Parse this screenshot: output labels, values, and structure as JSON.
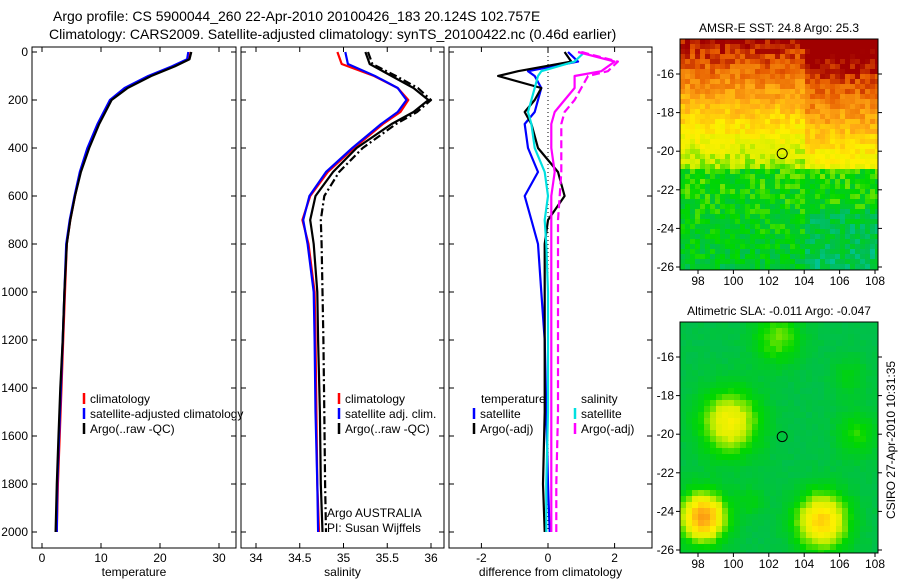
{
  "title_line1": "Argo profile: CS 5900044_260 22-Apr-2010 20100426_183 20.124S 102.757E",
  "title_line2": "Climatology: CARS2009. Satellite-adjusted climatology: synTS_20100422.nc (0.46d earlier)",
  "footer_stamp": "CSIRO 27-Apr-2010 10:31:35",
  "annotation": {
    "line1": "Argo AUSTRALIA",
    "line2": "PI: Susan Wijffels"
  },
  "colors": {
    "climatology": "#ff0000",
    "satellite": "#0000ff",
    "argo": "#000000",
    "sal_satellite": "#00e0e0",
    "sal_argo": "#ff00ff"
  },
  "chart_data": [
    {
      "type": "line",
      "xlabel": "temperature",
      "xlim": [
        -1.7,
        32.9
      ],
      "ylim": [
        0,
        2067
      ],
      "xticks": [
        "0",
        "10",
        "20",
        "30"
      ],
      "xtick_values": [
        0,
        10,
        20,
        30
      ],
      "yticks": [
        "0",
        "200",
        "400",
        "600",
        "800",
        "1000",
        "1200",
        "1400",
        "1600",
        "1800",
        "2000"
      ],
      "ytick_values": [
        0,
        200,
        400,
        600,
        800,
        1000,
        1200,
        1400,
        1600,
        1800,
        2000
      ],
      "y_reversed": true,
      "legend": [
        "climatology",
        "satellite-adjusted climatology",
        "Argo(..raw -QC)"
      ],
      "depth": [
        0,
        30,
        60,
        100,
        150,
        200,
        300,
        400,
        500,
        600,
        700,
        800,
        1000,
        1200,
        1400,
        1600,
        1800,
        2000
      ],
      "series": [
        {
          "name": "climatology",
          "values": [
            25.2,
            24.9,
            22.2,
            18.2,
            14.2,
            11.6,
            9.5,
            7.8,
            6.5,
            5.6,
            4.8,
            4.2,
            3.9,
            3.6,
            3.3,
            3.0,
            2.7,
            2.5
          ]
        },
        {
          "name": "satellite-adjusted climatology",
          "values": [
            24.8,
            24.6,
            22.0,
            18.0,
            14.0,
            11.5,
            9.4,
            7.7,
            6.4,
            5.5,
            4.7,
            4.1,
            3.8,
            3.5,
            3.2,
            2.9,
            2.6,
            2.5
          ]
        },
        {
          "name": "Argo(..raw -QC)",
          "values": [
            25.3,
            25.0,
            22.5,
            18.5,
            14.5,
            11.8,
            9.7,
            8.0,
            6.6,
            5.6,
            4.8,
            4.2,
            3.8,
            3.5,
            3.1,
            2.8,
            2.5,
            2.3
          ]
        }
      ]
    },
    {
      "type": "line",
      "xlabel": "salinity",
      "xlim": [
        33.83,
        36.15
      ],
      "ylim": [
        0,
        2067
      ],
      "xticks": [
        "34",
        "34.5",
        "35",
        "35.5",
        "36"
      ],
      "xtick_values": [
        34,
        34.5,
        35,
        35.5,
        36
      ],
      "y_reversed": true,
      "legend": [
        "climatology",
        "satellite adj. clim.",
        "Argo(..raw -QC)"
      ],
      "depth": [
        0,
        50,
        100,
        150,
        200,
        250,
        300,
        400,
        500,
        600,
        700,
        800,
        1000,
        1200,
        1500,
        1800,
        2000
      ],
      "series": [
        {
          "name": "climatology",
          "values": [
            34.93,
            34.98,
            35.35,
            35.62,
            35.74,
            35.65,
            35.45,
            35.12,
            34.82,
            34.62,
            34.53,
            34.6,
            34.67,
            34.68,
            34.69,
            34.7,
            34.72
          ]
        },
        {
          "name": "satellite adj. clim.",
          "values": [
            35.02,
            35.05,
            35.36,
            35.62,
            35.72,
            35.62,
            35.43,
            35.1,
            34.8,
            34.61,
            34.54,
            34.59,
            34.66,
            34.67,
            34.68,
            34.7,
            34.71
          ]
        },
        {
          "name": "Argo(..raw -QC)",
          "values": [
            35.25,
            35.3,
            35.55,
            35.8,
            35.97,
            35.8,
            35.55,
            35.15,
            34.88,
            34.68,
            34.62,
            34.66,
            34.7,
            34.71,
            34.73,
            34.74,
            34.76
          ]
        },
        {
          "name": "Argo adjusted",
          "values": [
            35.28,
            35.33,
            35.6,
            35.85,
            36.0,
            35.84,
            35.6,
            35.22,
            34.95,
            34.78,
            34.74,
            34.75,
            34.76,
            34.77,
            34.78,
            34.79,
            34.8
          ]
        }
      ]
    },
    {
      "type": "line",
      "xlabel": "difference from climatology",
      "xlim": [
        -2.97,
        3.12
      ],
      "ylim": [
        0,
        2067
      ],
      "xticks": [
        "-2",
        "0",
        "2"
      ],
      "xtick_values": [
        -2,
        0,
        2
      ],
      "y_reversed": true,
      "legend_temperature": {
        "title": "temperature",
        "items": [
          "satellite",
          "Argo(-adj)"
        ]
      },
      "legend_salinity": {
        "title": "salinity",
        "items": [
          "satellite",
          "Argo(-adj)"
        ]
      },
      "depth": [
        0,
        40,
        80,
        100,
        150,
        200,
        250,
        300,
        400,
        500,
        600,
        700,
        800,
        1000,
        1200,
        1500,
        1800,
        2000
      ],
      "series": [
        {
          "name": "temperature satellite",
          "values": [
            0.6,
            0.9,
            -0.6,
            -0.4,
            -0.2,
            -0.3,
            -0.4,
            -0.7,
            -0.6,
            -0.3,
            -0.7,
            -0.5,
            -0.3,
            -0.2,
            -0.1,
            -0.05,
            0,
            0.05
          ]
        },
        {
          "name": "temperature Argo(-adj)",
          "values": [
            0.5,
            0.7,
            -0.9,
            -1.5,
            -0.2,
            -0.4,
            -0.7,
            -0.5,
            -0.3,
            0.3,
            0.5,
            0.0,
            -0.1,
            -0.1,
            -0.1,
            -0.1,
            -0.15,
            -0.1
          ]
        },
        {
          "name": "salinity satellite",
          "values": [
            1.1,
            0.8,
            -0.2,
            -0.3,
            -0.4,
            -0.5,
            -0.6,
            -0.5,
            -0.4,
            -0.1,
            0.0,
            -0.1,
            -0.05,
            0,
            0,
            0,
            -0.05,
            -0.05
          ]
        },
        {
          "name": "salinity Argo(-adj)",
          "values": [
            0.9,
            2.0,
            1.6,
            0.8,
            0.8,
            0.5,
            0.2,
            0.1,
            0.1,
            0.2,
            0.1,
            0.1,
            0.1,
            0.1,
            0.1,
            0.1,
            0.1,
            0.1
          ]
        },
        {
          "name": "salinity Argo(-adj) adjusted",
          "values": [
            1.0,
            2.1,
            1.8,
            1.2,
            1.0,
            0.8,
            0.5,
            0.4,
            0.4,
            0.4,
            0.35,
            0.3,
            0.3,
            0.3,
            0.3,
            0.3,
            0.25,
            0.25
          ]
        }
      ]
    },
    {
      "type": "heatmap",
      "title": "AMSR-E SST: 24.8 Argo: 25.3",
      "xticks": [
        "98",
        "100",
        "102",
        "104",
        "106",
        "108"
      ],
      "xtick_values": [
        98,
        100,
        102,
        104,
        106,
        108
      ],
      "yticks": [
        "-16",
        "-18",
        "-20",
        "-22",
        "-24",
        "-26"
      ],
      "ytick_values": [
        -16,
        -18,
        -20,
        -22,
        -24,
        -26
      ],
      "xlim": [
        97.3,
        108.2
      ],
      "ylim": [
        -26.1,
        -14.7
      ],
      "marker": {
        "lon": 102.757,
        "lat": -20.124
      }
    },
    {
      "type": "heatmap",
      "title": "Altimetric SLA: -0.011 Argo: -0.047",
      "xticks": [
        "98",
        "100",
        "102",
        "104",
        "106",
        "108"
      ],
      "xtick_values": [
        98,
        100,
        102,
        104,
        106,
        108
      ],
      "yticks": [
        "-16",
        "-18",
        "-20",
        "-22",
        "-24",
        "-26"
      ],
      "ytick_values": [
        -16,
        -18,
        -20,
        -22,
        -24,
        -26
      ],
      "xlim": [
        97.3,
        108.2
      ],
      "ylim": [
        -26.1,
        -14.7
      ],
      "marker": {
        "lon": 102.757,
        "lat": -20.124
      }
    }
  ]
}
